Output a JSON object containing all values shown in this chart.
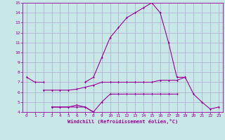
{
  "x": [
    0,
    1,
    2,
    3,
    4,
    5,
    6,
    7,
    8,
    9,
    10,
    11,
    12,
    13,
    14,
    15,
    16,
    17,
    18,
    19,
    20,
    21,
    22,
    23
  ],
  "line1": [
    7.5,
    7.0,
    7.0,
    null,
    null,
    null,
    null,
    7.0,
    7.5,
    9.5,
    11.5,
    12.5,
    13.5,
    14.0,
    14.5,
    15.0,
    14.0,
    11.0,
    7.5,
    7.5,
    null,
    null,
    null,
    null
  ],
  "line2": [
    null,
    null,
    6.2,
    6.2,
    6.2,
    6.2,
    6.3,
    6.5,
    6.7,
    7.0,
    7.0,
    7.0,
    7.0,
    7.0,
    7.0,
    7.0,
    7.2,
    7.2,
    7.2,
    7.5,
    5.8,
    5.0,
    4.3,
    4.5
  ],
  "line3": [
    null,
    null,
    null,
    4.5,
    4.5,
    4.5,
    4.5,
    4.5,
    4.0,
    5.0,
    5.8,
    5.8,
    5.8,
    5.8,
    5.8,
    5.8,
    5.8,
    5.8,
    5.8,
    null,
    null,
    null,
    null,
    null
  ],
  "line4": [
    null,
    null,
    null,
    4.5,
    4.5,
    4.5,
    4.7,
    4.5,
    4.0,
    null,
    null,
    null,
    null,
    null,
    null,
    null,
    null,
    null,
    null,
    null,
    null,
    null,
    null,
    null
  ],
  "bg_color": "#c8e8e8",
  "line_color": "#990099",
  "grid_color": "#aaaacc",
  "xlabel": "Windchill (Refroidissement éolien,°C)",
  "ylim": [
    4,
    15
  ],
  "xlim": [
    -0.5,
    23.5
  ],
  "yticks": [
    4,
    5,
    6,
    7,
    8,
    9,
    10,
    11,
    12,
    13,
    14,
    15
  ],
  "xticks": [
    0,
    1,
    2,
    3,
    4,
    5,
    6,
    7,
    8,
    9,
    10,
    11,
    12,
    13,
    14,
    15,
    16,
    17,
    18,
    19,
    20,
    21,
    22,
    23
  ]
}
